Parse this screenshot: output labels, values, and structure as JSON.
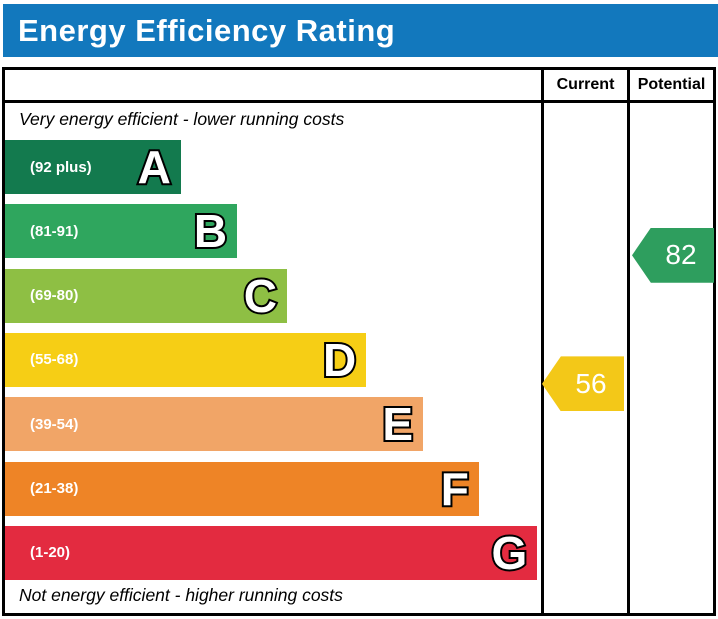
{
  "title": "Energy Efficiency Rating",
  "colors": {
    "banner_bg": "#1278bd",
    "border": "#000000",
    "text": "#000000",
    "band_label_text": "#ffffff"
  },
  "table": {
    "column_headers": {
      "current": "Current",
      "potential": "Potential"
    },
    "top_caption": "Very energy efficient - lower running costs",
    "bottom_caption": "Not energy efficient - higher running costs"
  },
  "chart_data": {
    "type": "bar",
    "title": "Energy Efficiency Rating",
    "orientation": "horizontal",
    "bands": [
      {
        "letter": "A",
        "range": "(92 plus)",
        "min": 92,
        "max": 100,
        "color": "#137a4e",
        "bar_length_pct": 32.8
      },
      {
        "letter": "B",
        "range": "(81-91)",
        "min": 81,
        "max": 91,
        "color": "#2fa65e",
        "bar_length_pct": 43.3
      },
      {
        "letter": "C",
        "range": "(69-80)",
        "min": 69,
        "max": 80,
        "color": "#8ebf44",
        "bar_length_pct": 52.6
      },
      {
        "letter": "D",
        "range": "(55-68)",
        "min": 55,
        "max": 68,
        "color": "#f6ce15",
        "bar_length_pct": 67.4
      },
      {
        "letter": "E",
        "range": "(39-54)",
        "min": 39,
        "max": 54,
        "color": "#f1a567",
        "bar_length_pct": 78.0
      },
      {
        "letter": "F",
        "range": "(21-38)",
        "min": 21,
        "max": 38,
        "color": "#ee8426",
        "bar_length_pct": 88.4
      },
      {
        "letter": "G",
        "range": "(1-20)",
        "min": 1,
        "max": 20,
        "color": "#e32b40",
        "bar_length_pct": 99.3
      }
    ],
    "markers": [
      {
        "label": "Current",
        "value": 56,
        "band": "D",
        "color": "#f3c818"
      },
      {
        "label": "Potential",
        "value": 82,
        "band": "B",
        "color": "#2e9e5e"
      }
    ]
  }
}
